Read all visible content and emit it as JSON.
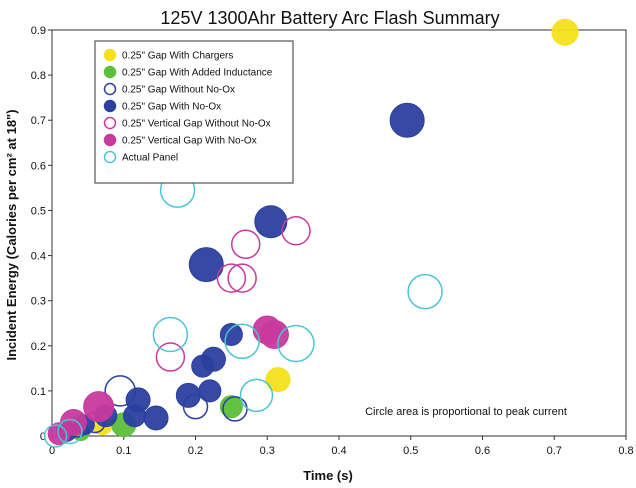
{
  "chart_data": {
    "type": "scatter",
    "title": "125V 1300Ahr Battery Arc Flash Summary",
    "xlabel": "Time (s)",
    "ylabel": "Incident Energy (Calories per cm² at 18\")",
    "xlim": [
      0,
      0.8
    ],
    "ylim": [
      0,
      0.9
    ],
    "xticks": [
      "0",
      "0.1",
      "0.2",
      "0.3",
      "0.4",
      "0.5",
      "0.6",
      "0.7",
      "0.8"
    ],
    "yticks": [
      "0",
      "0.1",
      "0.2",
      "0.3",
      "0.4",
      "0.5",
      "0.6",
      "0.7",
      "0.8",
      "0.9"
    ],
    "legend_position": "top-left",
    "annotation": "Circle area is proportional to peak current",
    "series": [
      {
        "name": "0.25\" Gap With Chargers",
        "color": "#f5e21a",
        "filled": true,
        "points": [
          {
            "x": 0.715,
            "y": 0.895,
            "r": 13
          },
          {
            "x": 0.315,
            "y": 0.125,
            "r": 12
          },
          {
            "x": 0.07,
            "y": 0.025,
            "r": 10
          },
          {
            "x": 0.03,
            "y": 0.015,
            "r": 9
          }
        ]
      },
      {
        "name": "0.25\" Gap With Added Inductance",
        "color": "#5bbf3a",
        "filled": true,
        "points": [
          {
            "x": 0.25,
            "y": 0.065,
            "r": 11
          },
          {
            "x": 0.1,
            "y": 0.025,
            "r": 12
          },
          {
            "x": 0.04,
            "y": 0.01,
            "r": 9
          }
        ]
      },
      {
        "name": "0.25\" Gap Without No-Ox",
        "color": "#2b3f9f",
        "filled": false,
        "points": [
          {
            "x": 0.095,
            "y": 0.1,
            "r": 15
          },
          {
            "x": 0.2,
            "y": 0.065,
            "r": 12
          },
          {
            "x": 0.255,
            "y": 0.06,
            "r": 12
          },
          {
            "x": 0.035,
            "y": 0.02,
            "r": 10
          },
          {
            "x": 0.06,
            "y": 0.03,
            "r": 10
          }
        ]
      },
      {
        "name": "0.25\" Gap With No-Ox",
        "color": "#2b3f9f",
        "filled": true,
        "points": [
          {
            "x": 0.495,
            "y": 0.7,
            "r": 17
          },
          {
            "x": 0.305,
            "y": 0.475,
            "r": 16
          },
          {
            "x": 0.215,
            "y": 0.38,
            "r": 17
          },
          {
            "x": 0.25,
            "y": 0.225,
            "r": 11
          },
          {
            "x": 0.225,
            "y": 0.17,
            "r": 12
          },
          {
            "x": 0.21,
            "y": 0.155,
            "r": 11
          },
          {
            "x": 0.22,
            "y": 0.1,
            "r": 11
          },
          {
            "x": 0.19,
            "y": 0.09,
            "r": 12
          },
          {
            "x": 0.12,
            "y": 0.08,
            "r": 12
          },
          {
            "x": 0.115,
            "y": 0.045,
            "r": 11
          },
          {
            "x": 0.145,
            "y": 0.04,
            "r": 12
          },
          {
            "x": 0.075,
            "y": 0.045,
            "r": 11
          },
          {
            "x": 0.045,
            "y": 0.025,
            "r": 10
          },
          {
            "x": 0.02,
            "y": 0.01,
            "r": 10
          }
        ]
      },
      {
        "name": "0.25\" Vertical Gap Without No-Ox",
        "color": "#c83a9e",
        "filled": false,
        "points": [
          {
            "x": 0.34,
            "y": 0.455,
            "r": 14
          },
          {
            "x": 0.27,
            "y": 0.425,
            "r": 14
          },
          {
            "x": 0.25,
            "y": 0.35,
            "r": 14
          },
          {
            "x": 0.265,
            "y": 0.35,
            "r": 14
          },
          {
            "x": 0.165,
            "y": 0.175,
            "r": 14
          }
        ]
      },
      {
        "name": "0.25\" Vertical Gap With No-Ox",
        "color": "#c83a9e",
        "filled": true,
        "points": [
          {
            "x": 0.3,
            "y": 0.235,
            "r": 14
          },
          {
            "x": 0.31,
            "y": 0.225,
            "r": 14
          },
          {
            "x": 0.065,
            "y": 0.065,
            "r": 15
          },
          {
            "x": 0.03,
            "y": 0.03,
            "r": 13
          },
          {
            "x": 0.01,
            "y": 0.005,
            "r": 11
          }
        ]
      },
      {
        "name": "Actual Panel",
        "color": "#4cc4d4",
        "filled": false,
        "points": [
          {
            "x": 0.175,
            "y": 0.545,
            "r": 17
          },
          {
            "x": 0.52,
            "y": 0.32,
            "r": 17
          },
          {
            "x": 0.34,
            "y": 0.205,
            "r": 18
          },
          {
            "x": 0.265,
            "y": 0.21,
            "r": 17
          },
          {
            "x": 0.165,
            "y": 0.225,
            "r": 17
          },
          {
            "x": 0.285,
            "y": 0.09,
            "r": 16
          },
          {
            "x": 0.025,
            "y": 0.01,
            "r": 12
          },
          {
            "x": 0.005,
            "y": 0.0,
            "r": 11
          }
        ]
      }
    ]
  }
}
